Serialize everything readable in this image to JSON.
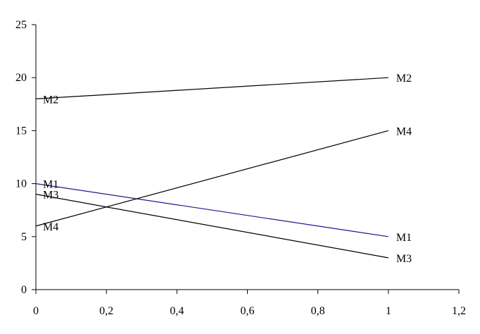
{
  "chart_data": {
    "type": "line",
    "title": "",
    "xlabel": "",
    "ylabel": "",
    "xlim": [
      0,
      1.2
    ],
    "ylim": [
      0,
      25
    ],
    "x_ticks": [
      "0",
      "0,2",
      "0,4",
      "0,6",
      "0,8",
      "1",
      "1,2"
    ],
    "y_ticks": [
      "0",
      "5",
      "10",
      "15",
      "20",
      "25"
    ],
    "grid": false,
    "legend": "none",
    "series": [
      {
        "name": "M1",
        "color": "#1a1a8c",
        "points": [
          [
            0,
            10
          ],
          [
            1,
            5
          ]
        ]
      },
      {
        "name": "M2",
        "color": "#000000",
        "points": [
          [
            0,
            18
          ],
          [
            1,
            20
          ]
        ]
      },
      {
        "name": "M3",
        "color": "#000000",
        "points": [
          [
            0,
            9
          ],
          [
            1,
            3
          ]
        ]
      },
      {
        "name": "M4",
        "color": "#000000",
        "points": [
          [
            0,
            6
          ],
          [
            1,
            15
          ]
        ]
      }
    ]
  }
}
